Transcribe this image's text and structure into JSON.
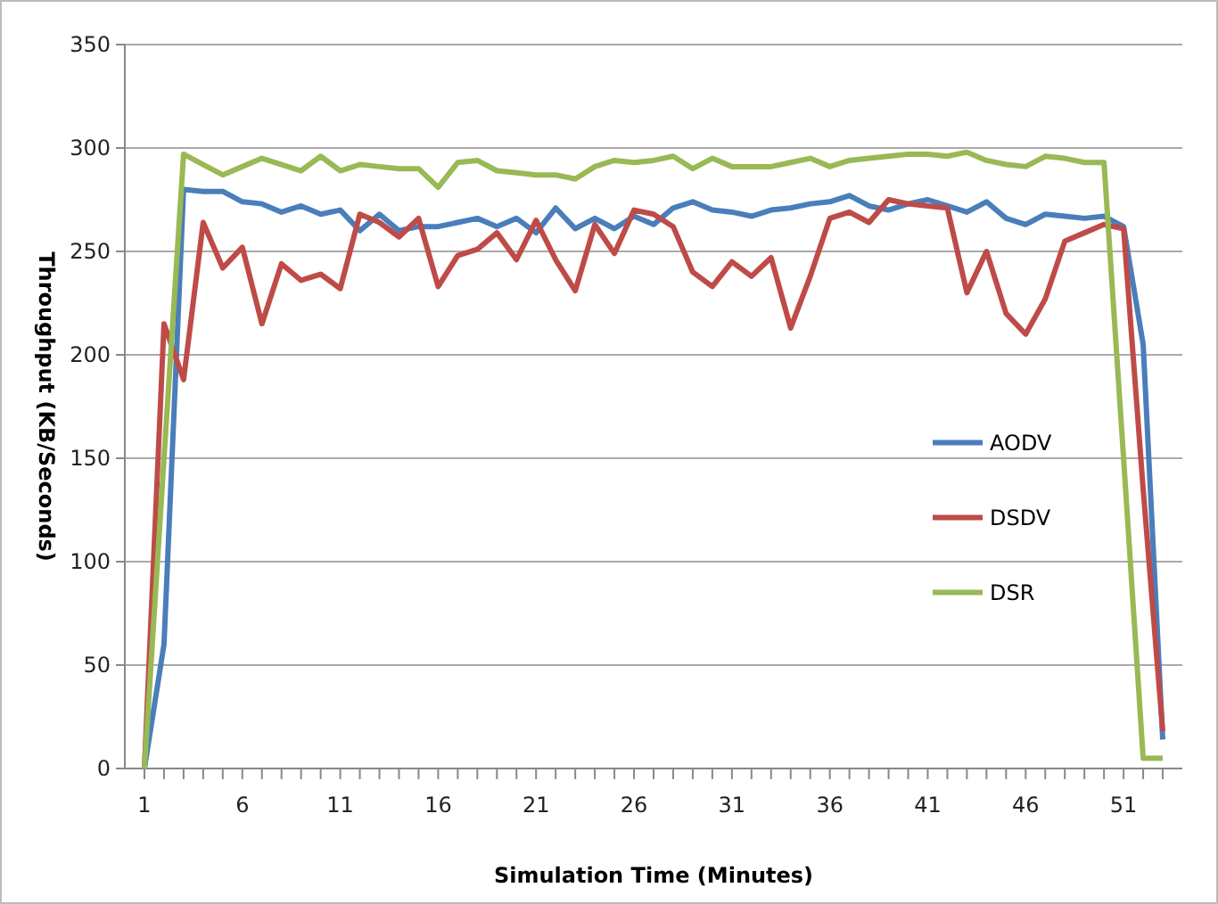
{
  "chart_data": {
    "type": "line",
    "xlabel": "Simulation Time (Minutes)",
    "ylabel": "Throughput  (KB/Seconds)",
    "x": [
      1,
      2,
      3,
      4,
      5,
      6,
      7,
      8,
      9,
      10,
      11,
      12,
      13,
      14,
      15,
      16,
      17,
      18,
      19,
      20,
      21,
      22,
      23,
      24,
      25,
      26,
      27,
      28,
      29,
      30,
      31,
      32,
      33,
      34,
      35,
      36,
      37,
      38,
      39,
      40,
      41,
      42,
      43,
      44,
      45,
      46,
      47,
      48,
      49,
      50,
      51,
      52,
      53
    ],
    "xlim": [
      0,
      54
    ],
    "xticks": [
      1,
      {
        "value": 2,
        "label": null
      },
      {
        "value": 3,
        "label": null
      },
      {
        "value": 4,
        "label": null
      },
      {
        "value": 5,
        "label": null
      },
      6,
      {
        "value": 7,
        "label": null
      },
      {
        "value": 8,
        "label": null
      },
      {
        "value": 9,
        "label": null
      },
      {
        "value": 10,
        "label": null
      },
      11,
      {
        "value": 12,
        "label": null
      },
      {
        "value": 13,
        "label": null
      },
      {
        "value": 14,
        "label": null
      },
      {
        "value": 15,
        "label": null
      },
      16,
      {
        "value": 17,
        "label": null
      },
      {
        "value": 18,
        "label": null
      },
      {
        "value": 19,
        "label": null
      },
      {
        "value": 20,
        "label": null
      },
      21,
      {
        "value": 22,
        "label": null
      },
      {
        "value": 23,
        "label": null
      },
      {
        "value": 24,
        "label": null
      },
      {
        "value": 25,
        "label": null
      },
      26,
      {
        "value": 27,
        "label": null
      },
      {
        "value": 28,
        "label": null
      },
      {
        "value": 29,
        "label": null
      },
      {
        "value": 30,
        "label": null
      },
      31,
      {
        "value": 32,
        "label": null
      },
      {
        "value": 33,
        "label": null
      },
      {
        "value": 34,
        "label": null
      },
      {
        "value": 35,
        "label": null
      },
      36,
      {
        "value": 37,
        "label": null
      },
      {
        "value": 38,
        "label": null
      },
      {
        "value": 39,
        "label": null
      },
      {
        "value": 40,
        "label": null
      },
      41,
      {
        "value": 42,
        "label": null
      },
      {
        "value": 43,
        "label": null
      },
      {
        "value": 44,
        "label": null
      },
      {
        "value": 45,
        "label": null
      },
      46,
      {
        "value": 47,
        "label": null
      },
      {
        "value": 48,
        "label": null
      },
      {
        "value": 49,
        "label": null
      },
      {
        "value": 50,
        "label": null
      },
      51,
      {
        "value": 52,
        "label": null
      },
      {
        "value": 53,
        "label": null
      }
    ],
    "series": [
      {
        "name": "AODV",
        "color": "#4a7ebb",
        "values": [
          0,
          60,
          280,
          279,
          279,
          274,
          273,
          269,
          272,
          268,
          270,
          260,
          268,
          260,
          262,
          262,
          264,
          266,
          262,
          266,
          259,
          271,
          261,
          266,
          261,
          267,
          263,
          271,
          274,
          270,
          269,
          267,
          270,
          271,
          273,
          274,
          277,
          272,
          270,
          273,
          275,
          272,
          269,
          274,
          266,
          263,
          268,
          267,
          266,
          267,
          262,
          205,
          14
        ]
      },
      {
        "name": "DSDV",
        "color": "#be4b48",
        "values": [
          0,
          215,
          188,
          264,
          242,
          252,
          215,
          244,
          236,
          239,
          232,
          268,
          264,
          257,
          266,
          233,
          248,
          251,
          259,
          246,
          265,
          246,
          231,
          263,
          249,
          270,
          268,
          262,
          240,
          233,
          245,
          238,
          247,
          213,
          238,
          266,
          269,
          264,
          275,
          273,
          272,
          271,
          230,
          250,
          220,
          210,
          227,
          255,
          259,
          263,
          261,
          135,
          18
        ]
      },
      {
        "name": "DSR",
        "color": "#98b954",
        "values": [
          0,
          150,
          297,
          292,
          287,
          291,
          295,
          292,
          289,
          296,
          289,
          292,
          291,
          290,
          290,
          281,
          293,
          294,
          289,
          288,
          287,
          287,
          285,
          291,
          294,
          293,
          294,
          296,
          290,
          295,
          291,
          291,
          291,
          293,
          295,
          291,
          294,
          295,
          296,
          297,
          297,
          296,
          298,
          294,
          292,
          291,
          296,
          295,
          293,
          293,
          150,
          5,
          5
        ]
      }
    ],
    "ylim": [
      0,
      350
    ],
    "yticks": [
      0,
      50,
      100,
      150,
      200,
      250,
      300,
      350
    ],
    "grid": "y",
    "legend": "right",
    "marker": "none",
    "line_style": "solid"
  }
}
